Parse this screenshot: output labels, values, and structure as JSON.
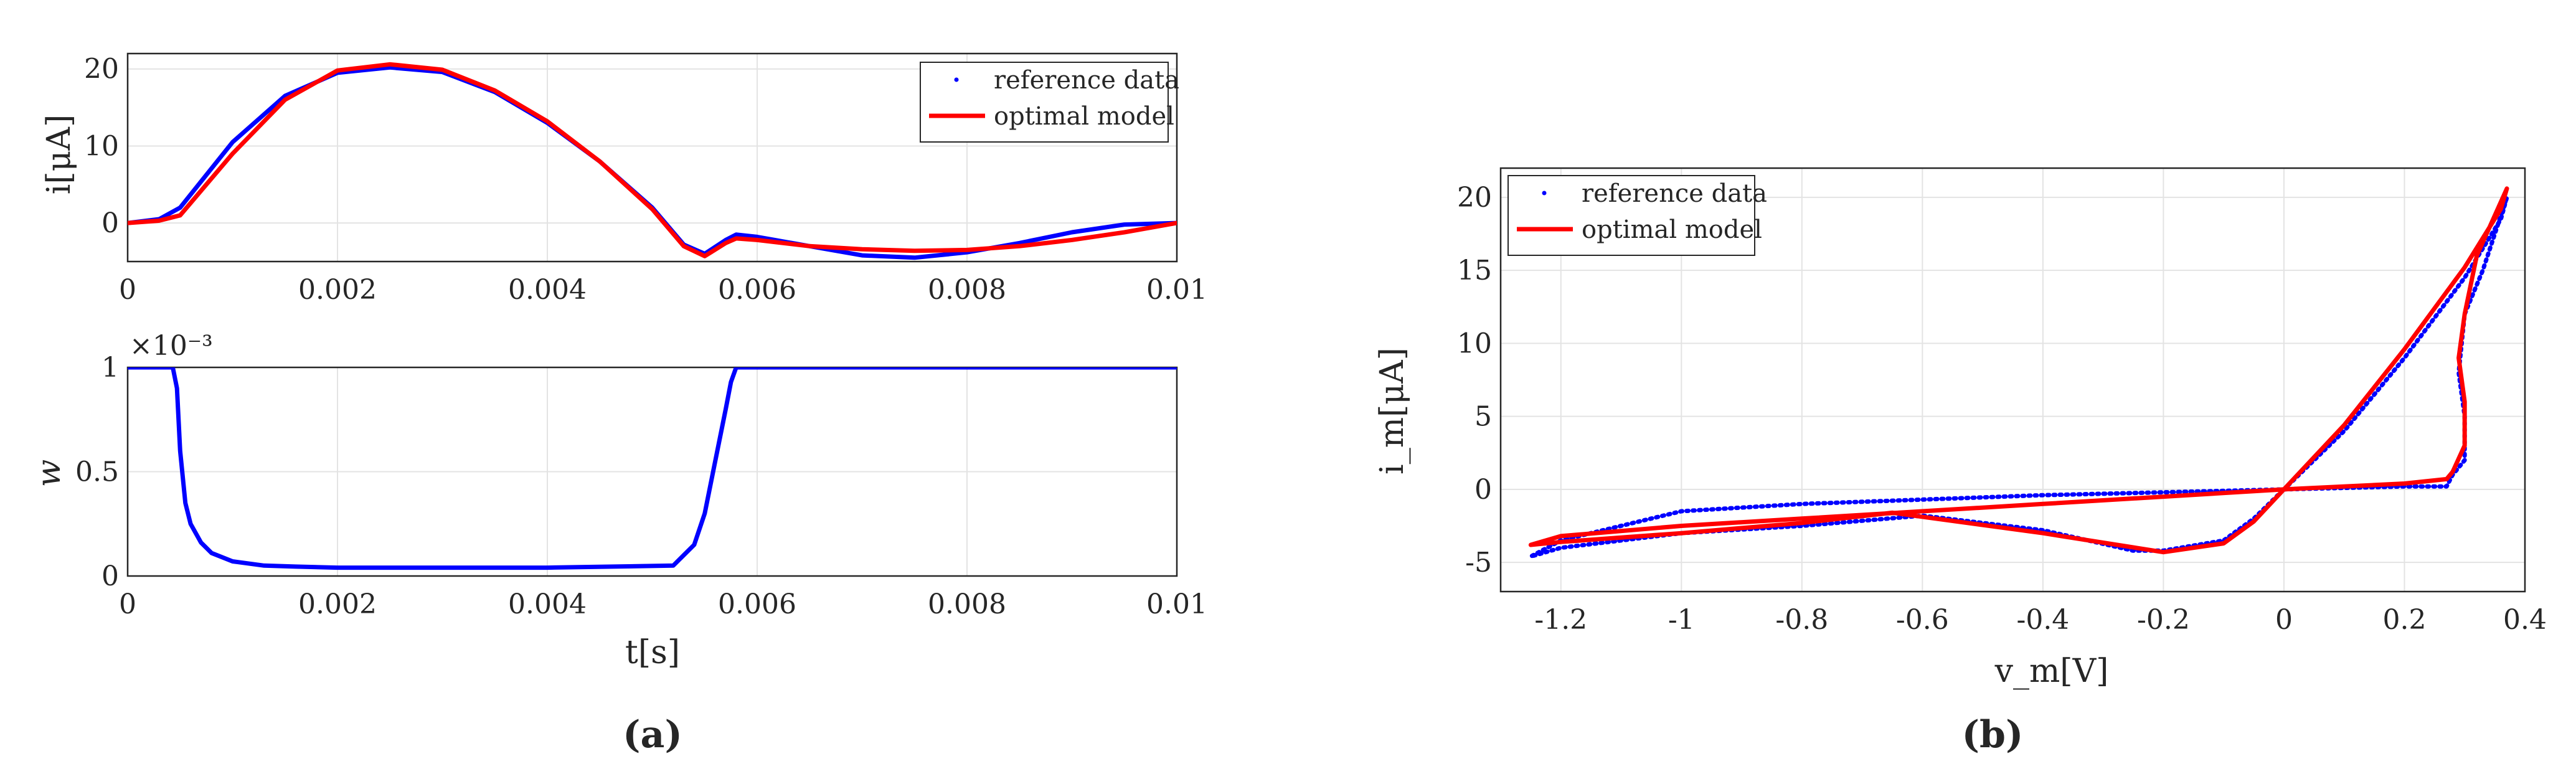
{
  "chart_data": [
    {
      "id": "a-top",
      "type": "line",
      "xlabel": "",
      "ylabel": "i[μA]",
      "xlim": [
        0,
        0.01
      ],
      "ylim": [
        -5,
        22
      ],
      "xticks": [
        "0",
        "0.002",
        "0.004",
        "0.006",
        "0.008",
        "0.01"
      ],
      "yticks": [
        "20",
        "10",
        "0"
      ],
      "legend": [
        "reference data",
        "optimal model"
      ],
      "legend_position": "top-right",
      "series": [
        {
          "name": "reference data",
          "color": "#0000ff",
          "x": [
            0,
            0.0003,
            0.0005,
            0.001,
            0.0015,
            0.002,
            0.0025,
            0.003,
            0.0035,
            0.004,
            0.0045,
            0.005,
            0.0053,
            0.0055,
            0.0057,
            0.0058,
            0.006,
            0.0065,
            0.007,
            0.0075,
            0.008,
            0.0085,
            0.009,
            0.0095,
            0.01
          ],
          "y": [
            0,
            0.5,
            2,
            10.5,
            16.5,
            19.5,
            20.2,
            19.6,
            17,
            13,
            8,
            2,
            -2.8,
            -4,
            -2.2,
            -1.5,
            -1.8,
            -3,
            -4.2,
            -4.5,
            -3.8,
            -2.6,
            -1.2,
            -0.2,
            0
          ]
        },
        {
          "name": "optimal model",
          "color": "#ff0000",
          "x": [
            0,
            0.0003,
            0.0005,
            0.001,
            0.0015,
            0.002,
            0.0025,
            0.003,
            0.0035,
            0.004,
            0.0045,
            0.005,
            0.0053,
            0.0055,
            0.0057,
            0.0058,
            0.006,
            0.0065,
            0.007,
            0.0075,
            0.008,
            0.0085,
            0.009,
            0.0095,
            0.01
          ],
          "y": [
            0,
            0.3,
            1,
            9,
            16,
            19.8,
            20.6,
            19.9,
            17.2,
            13.2,
            8,
            1.8,
            -3,
            -4.3,
            -2.6,
            -2,
            -2.2,
            -3,
            -3.4,
            -3.6,
            -3.5,
            -3,
            -2.2,
            -1.2,
            0
          ]
        }
      ]
    },
    {
      "id": "a-bottom",
      "type": "line",
      "xlabel": "t[s]",
      "ylabel": "w",
      "scale_label": "×10⁻³",
      "xlim": [
        0,
        0.01
      ],
      "ylim": [
        0,
        1
      ],
      "xticks": [
        "0",
        "0.002",
        "0.004",
        "0.006",
        "0.008",
        "0.01"
      ],
      "yticks": [
        "1",
        "0.5",
        "0"
      ],
      "series": [
        {
          "name": "w",
          "color": "#0000ff",
          "x": [
            0,
            0.00043,
            0.00047,
            0.0005,
            0.00055,
            0.0006,
            0.0007,
            0.0008,
            0.001,
            0.0013,
            0.0016,
            0.002,
            0.003,
            0.004,
            0.0052,
            0.0054,
            0.0055,
            0.0056,
            0.0057,
            0.00575,
            0.0058,
            0.0059,
            0.007,
            0.008,
            0.009,
            0.01
          ],
          "y": [
            1,
            1,
            0.9,
            0.6,
            0.35,
            0.25,
            0.16,
            0.11,
            0.07,
            0.05,
            0.045,
            0.04,
            0.04,
            0.04,
            0.05,
            0.15,
            0.3,
            0.55,
            0.8,
            0.93,
            1,
            1,
            1,
            1,
            1,
            1
          ]
        }
      ]
    },
    {
      "id": "b",
      "type": "line",
      "xlabel": "v_m[V]",
      "ylabel": "i_m[μA]",
      "xlim": [
        -1.3,
        0.4
      ],
      "ylim": [
        -7,
        22
      ],
      "xticks": [
        "-1.2",
        "-1",
        "-0.8",
        "-0.6",
        "-0.4",
        "-0.2",
        "0",
        "0.2",
        "0.4"
      ],
      "yticks": [
        "20",
        "15",
        "10",
        "5",
        "0",
        "-5"
      ],
      "legend": [
        "reference data",
        "optimal model"
      ],
      "legend_position": "top-left",
      "series": [
        {
          "name": "reference data",
          "color": "#0000ff",
          "x": [
            0,
            0.1,
            0.2,
            0.3,
            0.36,
            0.37,
            0.33,
            0.3,
            0.29,
            0.3,
            0.3,
            0.28,
            0.27,
            0.2,
            0,
            -0.2,
            -0.4,
            -0.6,
            -0.8,
            -1,
            -1.2,
            -1.25,
            -1.2,
            -1,
            -0.8,
            -0.6,
            -0.4,
            -0.25,
            -0.2,
            -0.1,
            -0.05,
            0
          ],
          "y": [
            0,
            4,
            9,
            14.5,
            18.5,
            20,
            15,
            12,
            8,
            5,
            2,
            1,
            0.2,
            0.2,
            0,
            -0.2,
            -0.4,
            -0.7,
            -1,
            -1.5,
            -3.5,
            -4.6,
            -4,
            -3,
            -2.5,
            -1.8,
            -2.8,
            -4.2,
            -4.2,
            -3.5,
            -2,
            0
          ]
        },
        {
          "name": "optimal model",
          "color": "#ff0000",
          "x": [
            0,
            0.1,
            0.2,
            0.3,
            0.36,
            0.37,
            0.32,
            0.3,
            0.29,
            0.3,
            0.3,
            0.28,
            0.27,
            0.2,
            0,
            -0.2,
            -0.4,
            -0.6,
            -0.8,
            -1,
            -1.2,
            -1.25,
            -1.2,
            -1,
            -0.8,
            -0.65,
            -0.4,
            -0.2,
            -0.1,
            -0.05,
            0
          ],
          "y": [
            0,
            4.4,
            9.6,
            15.2,
            19.2,
            20.6,
            16,
            12,
            9,
            6,
            3,
            1.2,
            0.7,
            0.4,
            0,
            -0.5,
            -1,
            -1.5,
            -2,
            -2.5,
            -3.2,
            -3.8,
            -3.6,
            -3,
            -2.3,
            -1.6,
            -3,
            -4.3,
            -3.7,
            -2.2,
            0
          ]
        }
      ]
    }
  ],
  "panels": {
    "a": "(a)",
    "b": "(b)"
  }
}
